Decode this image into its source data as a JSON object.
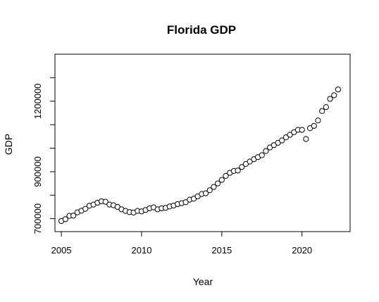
{
  "chart_data": {
    "type": "scatter",
    "title": "Florida GDP",
    "xlabel": "Year",
    "ylabel": "GDP",
    "xlim": [
      2004.6,
      2023.0
    ],
    "ylim": [
      645000,
      1400000
    ],
    "xticks": [
      2005,
      2010,
      2015,
      2020
    ],
    "xtick_labels": [
      "2005",
      "2010",
      "2015",
      "2020"
    ],
    "yticks": [
      700000,
      900000,
      1200000
    ],
    "ytick_labels": [
      "700000",
      "900000",
      "1200000"
    ],
    "yticks_unlabeled": [
      800000,
      1000000,
      1100000,
      1300000
    ],
    "grid": false,
    "legend": "none",
    "x": [
      2005.0,
      2005.25,
      2005.5,
      2005.75,
      2006.0,
      2006.25,
      2006.5,
      2006.75,
      2007.0,
      2007.25,
      2007.5,
      2007.75,
      2008.0,
      2008.25,
      2008.5,
      2008.75,
      2009.0,
      2009.25,
      2009.5,
      2009.75,
      2010.0,
      2010.25,
      2010.5,
      2010.75,
      2011.0,
      2011.25,
      2011.5,
      2011.75,
      2012.0,
      2012.25,
      2012.5,
      2012.75,
      2013.0,
      2013.25,
      2013.5,
      2013.75,
      2014.0,
      2014.25,
      2014.5,
      2014.75,
      2015.0,
      2015.25,
      2015.5,
      2015.75,
      2016.0,
      2016.25,
      2016.5,
      2016.75,
      2017.0,
      2017.25,
      2017.5,
      2017.75,
      2018.0,
      2018.25,
      2018.5,
      2018.75,
      2019.0,
      2019.25,
      2019.5,
      2019.75,
      2020.0,
      2020.25,
      2020.5,
      2020.75,
      2021.0,
      2021.25,
      2021.5,
      2021.75,
      2022.0,
      2022.25
    ],
    "y": [
      690000,
      698000,
      712000,
      713000,
      727000,
      734000,
      742000,
      755000,
      760000,
      768000,
      774000,
      772000,
      760000,
      757000,
      750000,
      740000,
      733000,
      728000,
      726000,
      733000,
      731000,
      737000,
      744000,
      748000,
      740000,
      744000,
      746000,
      752000,
      756000,
      762000,
      766000,
      770000,
      781000,
      785000,
      795000,
      805000,
      808000,
      821000,
      835000,
      850000,
      865000,
      882000,
      895000,
      903000,
      905000,
      920000,
      933000,
      943000,
      953000,
      962000,
      970000,
      988000,
      1003000,
      1013000,
      1023000,
      1033000,
      1046000,
      1057000,
      1068000,
      1078000,
      1078000,
      1039000,
      1085000,
      1095000,
      1118000,
      1158000,
      1175000,
      1210000,
      1225000,
      1250000
    ]
  }
}
